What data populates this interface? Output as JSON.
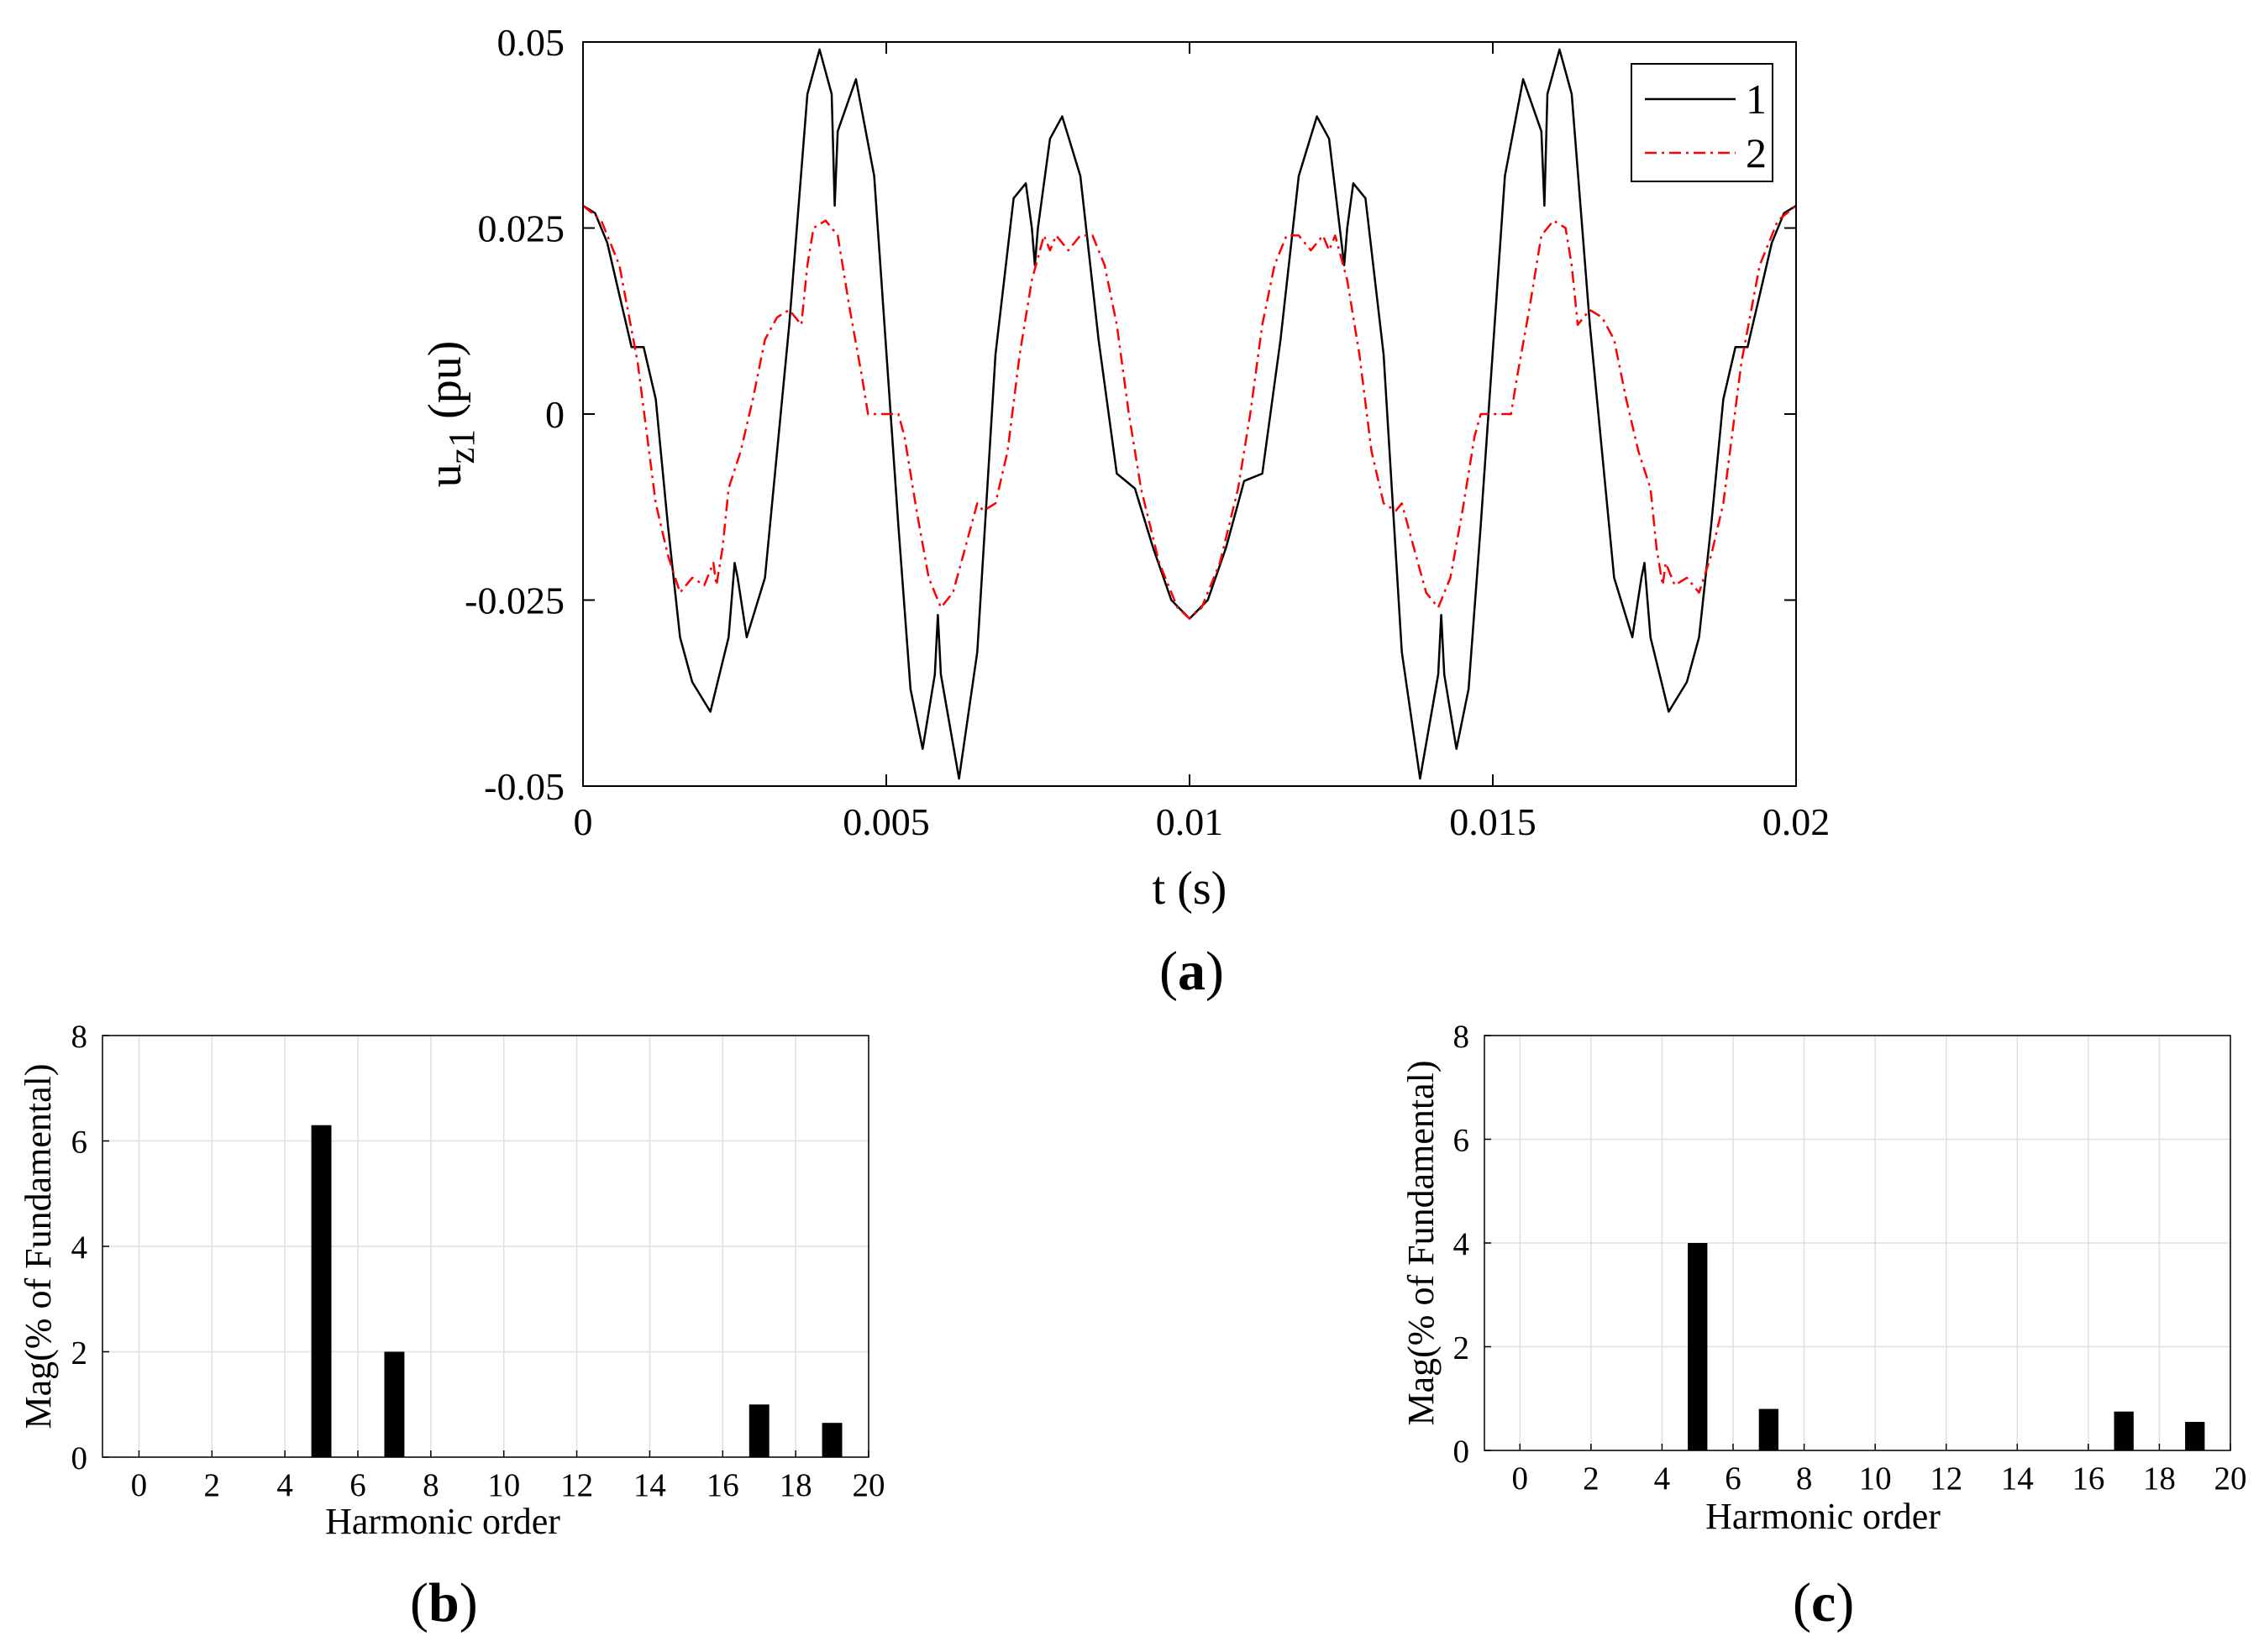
{
  "chart_data": [
    {
      "panel": "(a)",
      "type": "line",
      "xlabel": "t (s)",
      "ylabel": {
        "main": "u",
        "sub": "z1",
        "unit": "(pu)"
      },
      "xlim": [
        0,
        0.02
      ],
      "ylim": [
        -0.05,
        0.05
      ],
      "xticks": [
        0,
        0.005,
        0.01,
        0.015,
        0.02
      ],
      "xtick_labels": [
        "0",
        "0.005",
        "0.01",
        "0.015",
        "0.02"
      ],
      "yticks": [
        -0.05,
        -0.025,
        0,
        0.025,
        0.05
      ],
      "ytick_labels": [
        "-0.05",
        "-0.025",
        "0",
        "0.025",
        "0.05"
      ],
      "legend": {
        "location": "top-right",
        "entries": [
          "1",
          "2"
        ]
      },
      "series": [
        {
          "name": "1",
          "style": "solid",
          "color": "#000000",
          "x": [
            0,
            0.0002,
            0.0004,
            0.0006,
            0.0008,
            0.001,
            0.0012,
            0.0014,
            0.0016,
            0.0018,
            0.0021,
            0.0024,
            0.0025,
            0.00255,
            0.0027,
            0.003,
            0.0034,
            0.0037,
            0.0039,
            0.0041,
            0.00415,
            0.0042,
            0.0045,
            0.0048,
            0.0052,
            0.0054,
            0.0056,
            0.0058,
            0.00585,
            0.0059,
            0.0062,
            0.0065,
            0.0068,
            0.0071,
            0.0073,
            0.0074,
            0.00745,
            0.0075,
            0.0077,
            0.0079,
            0.0082,
            0.0085,
            0.0088,
            0.0091,
            0.0094,
            0.0097,
            0.01,
            0.0103,
            0.0106,
            0.0109,
            0.0112,
            0.0115,
            0.0118,
            0.0121,
            0.0123,
            0.01255,
            0.0126,
            0.0127,
            0.0129,
            0.0132,
            0.0135,
            0.0138,
            0.0141,
            0.01415,
            0.0142,
            0.0144,
            0.0146,
            0.0148,
            0.0152,
            0.0155,
            0.0158,
            0.01585,
            0.0159,
            0.0161,
            0.0163,
            0.0166,
            0.017,
            0.0173,
            0.01745,
            0.0175,
            0.0176,
            0.0179,
            0.0182,
            0.0184,
            0.0186,
            0.0188,
            0.019,
            0.0192,
            0.0194,
            0.0196,
            0.0198,
            0.02
          ],
          "y": [
            0.028,
            0.027,
            0.023,
            0.016,
            0.009,
            0.009,
            0.002,
            -0.015,
            -0.03,
            -0.036,
            -0.04,
            -0.03,
            -0.02,
            -0.022,
            -0.03,
            -0.022,
            0.012,
            0.043,
            0.049,
            0.043,
            0.028,
            0.038,
            0.045,
            0.032,
            -0.015,
            -0.037,
            -0.045,
            -0.035,
            -0.027,
            -0.035,
            -0.049,
            -0.032,
            0.008,
            0.029,
            0.031,
            0.025,
            0.02,
            0.025,
            0.037,
            0.04,
            0.032,
            0.01,
            -0.008,
            -0.01,
            -0.018,
            -0.025,
            -0.0275,
            -0.025,
            -0.018,
            -0.009,
            -0.008,
            0.01,
            0.032,
            0.04,
            0.037,
            0.02,
            0.025,
            0.031,
            0.029,
            0.008,
            -0.032,
            -0.049,
            -0.035,
            -0.027,
            -0.035,
            -0.045,
            -0.037,
            -0.015,
            0.032,
            0.045,
            0.038,
            0.028,
            0.043,
            0.049,
            0.043,
            0.012,
            -0.022,
            -0.03,
            -0.022,
            -0.02,
            -0.03,
            -0.04,
            -0.036,
            -0.03,
            -0.015,
            0.002,
            0.009,
            0.009,
            0.016,
            0.023,
            0.027,
            0.028
          ]
        },
        {
          "name": "2",
          "style": "dash-dot",
          "color": "#ff0000",
          "x": [
            0,
            0.0003,
            0.0006,
            0.0009,
            0.0012,
            0.0014,
            0.0016,
            0.0018,
            0.002,
            0.00215,
            0.0022,
            0.0023,
            0.0024,
            0.0026,
            0.0028,
            0.003,
            0.0032,
            0.0034,
            0.0035,
            0.0036,
            0.0037,
            0.0038,
            0.004,
            0.0042,
            0.0044,
            0.0046,
            0.0047,
            0.0048,
            0.0052,
            0.0053,
            0.0055,
            0.0057,
            0.0059,
            0.0061,
            0.0063,
            0.0065,
            0.0066,
            0.0068,
            0.007,
            0.0072,
            0.0074,
            0.0075,
            0.0076,
            0.0077,
            0.0078,
            0.008,
            0.0082,
            0.0084,
            0.0086,
            0.0088,
            0.009,
            0.0092,
            0.0095,
            0.0098,
            0.01,
            0.0102,
            0.0105,
            0.0108,
            0.011,
            0.0112,
            0.0114,
            0.0116,
            0.0118,
            0.012,
            0.0122,
            0.0123,
            0.0124,
            0.0125,
            0.0126,
            0.0128,
            0.013,
            0.0132,
            0.0134,
            0.0135,
            0.0137,
            0.0139,
            0.0141,
            0.0143,
            0.0145,
            0.0147,
            0.0148,
            0.0152,
            0.0153,
            0.0154,
            0.0156,
            0.0158,
            0.016,
            0.0162,
            0.0163,
            0.0164,
            0.0165,
            0.0166,
            0.0168,
            0.017,
            0.0172,
            0.0174,
            0.0176,
            0.0177,
            0.0178,
            0.01785,
            0.018,
            0.0182,
            0.0184,
            0.0186,
            0.0188,
            0.0191,
            0.0194,
            0.0197,
            0.02
          ],
          "y": [
            0.028,
            0.026,
            0.02,
            0.007,
            -0.012,
            -0.019,
            -0.024,
            -0.022,
            -0.023,
            -0.02,
            -0.023,
            -0.018,
            -0.01,
            -0.005,
            0.002,
            0.01,
            0.013,
            0.014,
            0.013,
            0.012,
            0.02,
            0.025,
            0.026,
            0.024,
            0.014,
            0.005,
            0.0,
            0.0,
            0.0,
            -0.003,
            -0.013,
            -0.022,
            -0.026,
            -0.024,
            -0.018,
            -0.012,
            -0.013,
            -0.012,
            -0.005,
            0.008,
            0.018,
            0.021,
            0.024,
            0.022,
            0.024,
            0.022,
            0.024,
            0.024,
            0.02,
            0.012,
            0.0,
            -0.01,
            -0.02,
            -0.026,
            -0.0275,
            -0.026,
            -0.02,
            -0.01,
            0.0,
            0.012,
            0.02,
            0.024,
            0.024,
            0.022,
            0.024,
            0.022,
            0.024,
            0.021,
            0.018,
            0.008,
            -0.005,
            -0.012,
            -0.013,
            -0.012,
            -0.018,
            -0.024,
            -0.026,
            -0.022,
            -0.013,
            -0.003,
            0.0,
            0.0,
            0.0,
            0.005,
            0.014,
            0.024,
            0.026,
            0.025,
            0.02,
            0.012,
            0.013,
            0.014,
            0.013,
            0.01,
            0.002,
            -0.005,
            -0.01,
            -0.018,
            -0.023,
            -0.02,
            -0.023,
            -0.022,
            -0.024,
            -0.019,
            -0.012,
            0.007,
            0.02,
            0.026,
            0.028
          ]
        }
      ]
    },
    {
      "panel": "(b)",
      "type": "bar",
      "xlabel": "Harmonic order",
      "ylabel": "Mag(% of Fundamental)",
      "xlim": [
        -1,
        20
      ],
      "ylim": [
        0,
        8
      ],
      "xticks": [
        0,
        2,
        4,
        6,
        8,
        10,
        12,
        14,
        16,
        18,
        20
      ],
      "yticks": [
        0,
        2,
        4,
        6,
        8
      ],
      "grid": true,
      "categories": [
        5,
        7,
        17,
        19
      ],
      "values": [
        6.3,
        2.0,
        1.0,
        0.65
      ]
    },
    {
      "panel": "(c)",
      "type": "bar",
      "xlabel": "Harmonic order",
      "ylabel": "Mag(% of Fundamental)",
      "xlim": [
        -1,
        20
      ],
      "ylim": [
        0,
        8
      ],
      "xticks": [
        0,
        2,
        4,
        6,
        8,
        10,
        12,
        14,
        16,
        18,
        20
      ],
      "yticks": [
        0,
        2,
        4,
        6,
        8
      ],
      "grid": true,
      "categories": [
        5,
        7,
        17,
        19
      ],
      "values": [
        4.0,
        0.8,
        0.75,
        0.55
      ]
    }
  ],
  "panel_labels": {
    "a": {
      "open": "(",
      "letter": "a",
      "close": ")"
    },
    "b": {
      "open": "(",
      "letter": "b",
      "close": ")"
    },
    "c": {
      "open": "(",
      "letter": "c",
      "close": ")"
    }
  },
  "colors": {
    "line1": "#000000",
    "line2": "#ff0000",
    "bar": "#000000",
    "grid": "#e0e0e0"
  }
}
